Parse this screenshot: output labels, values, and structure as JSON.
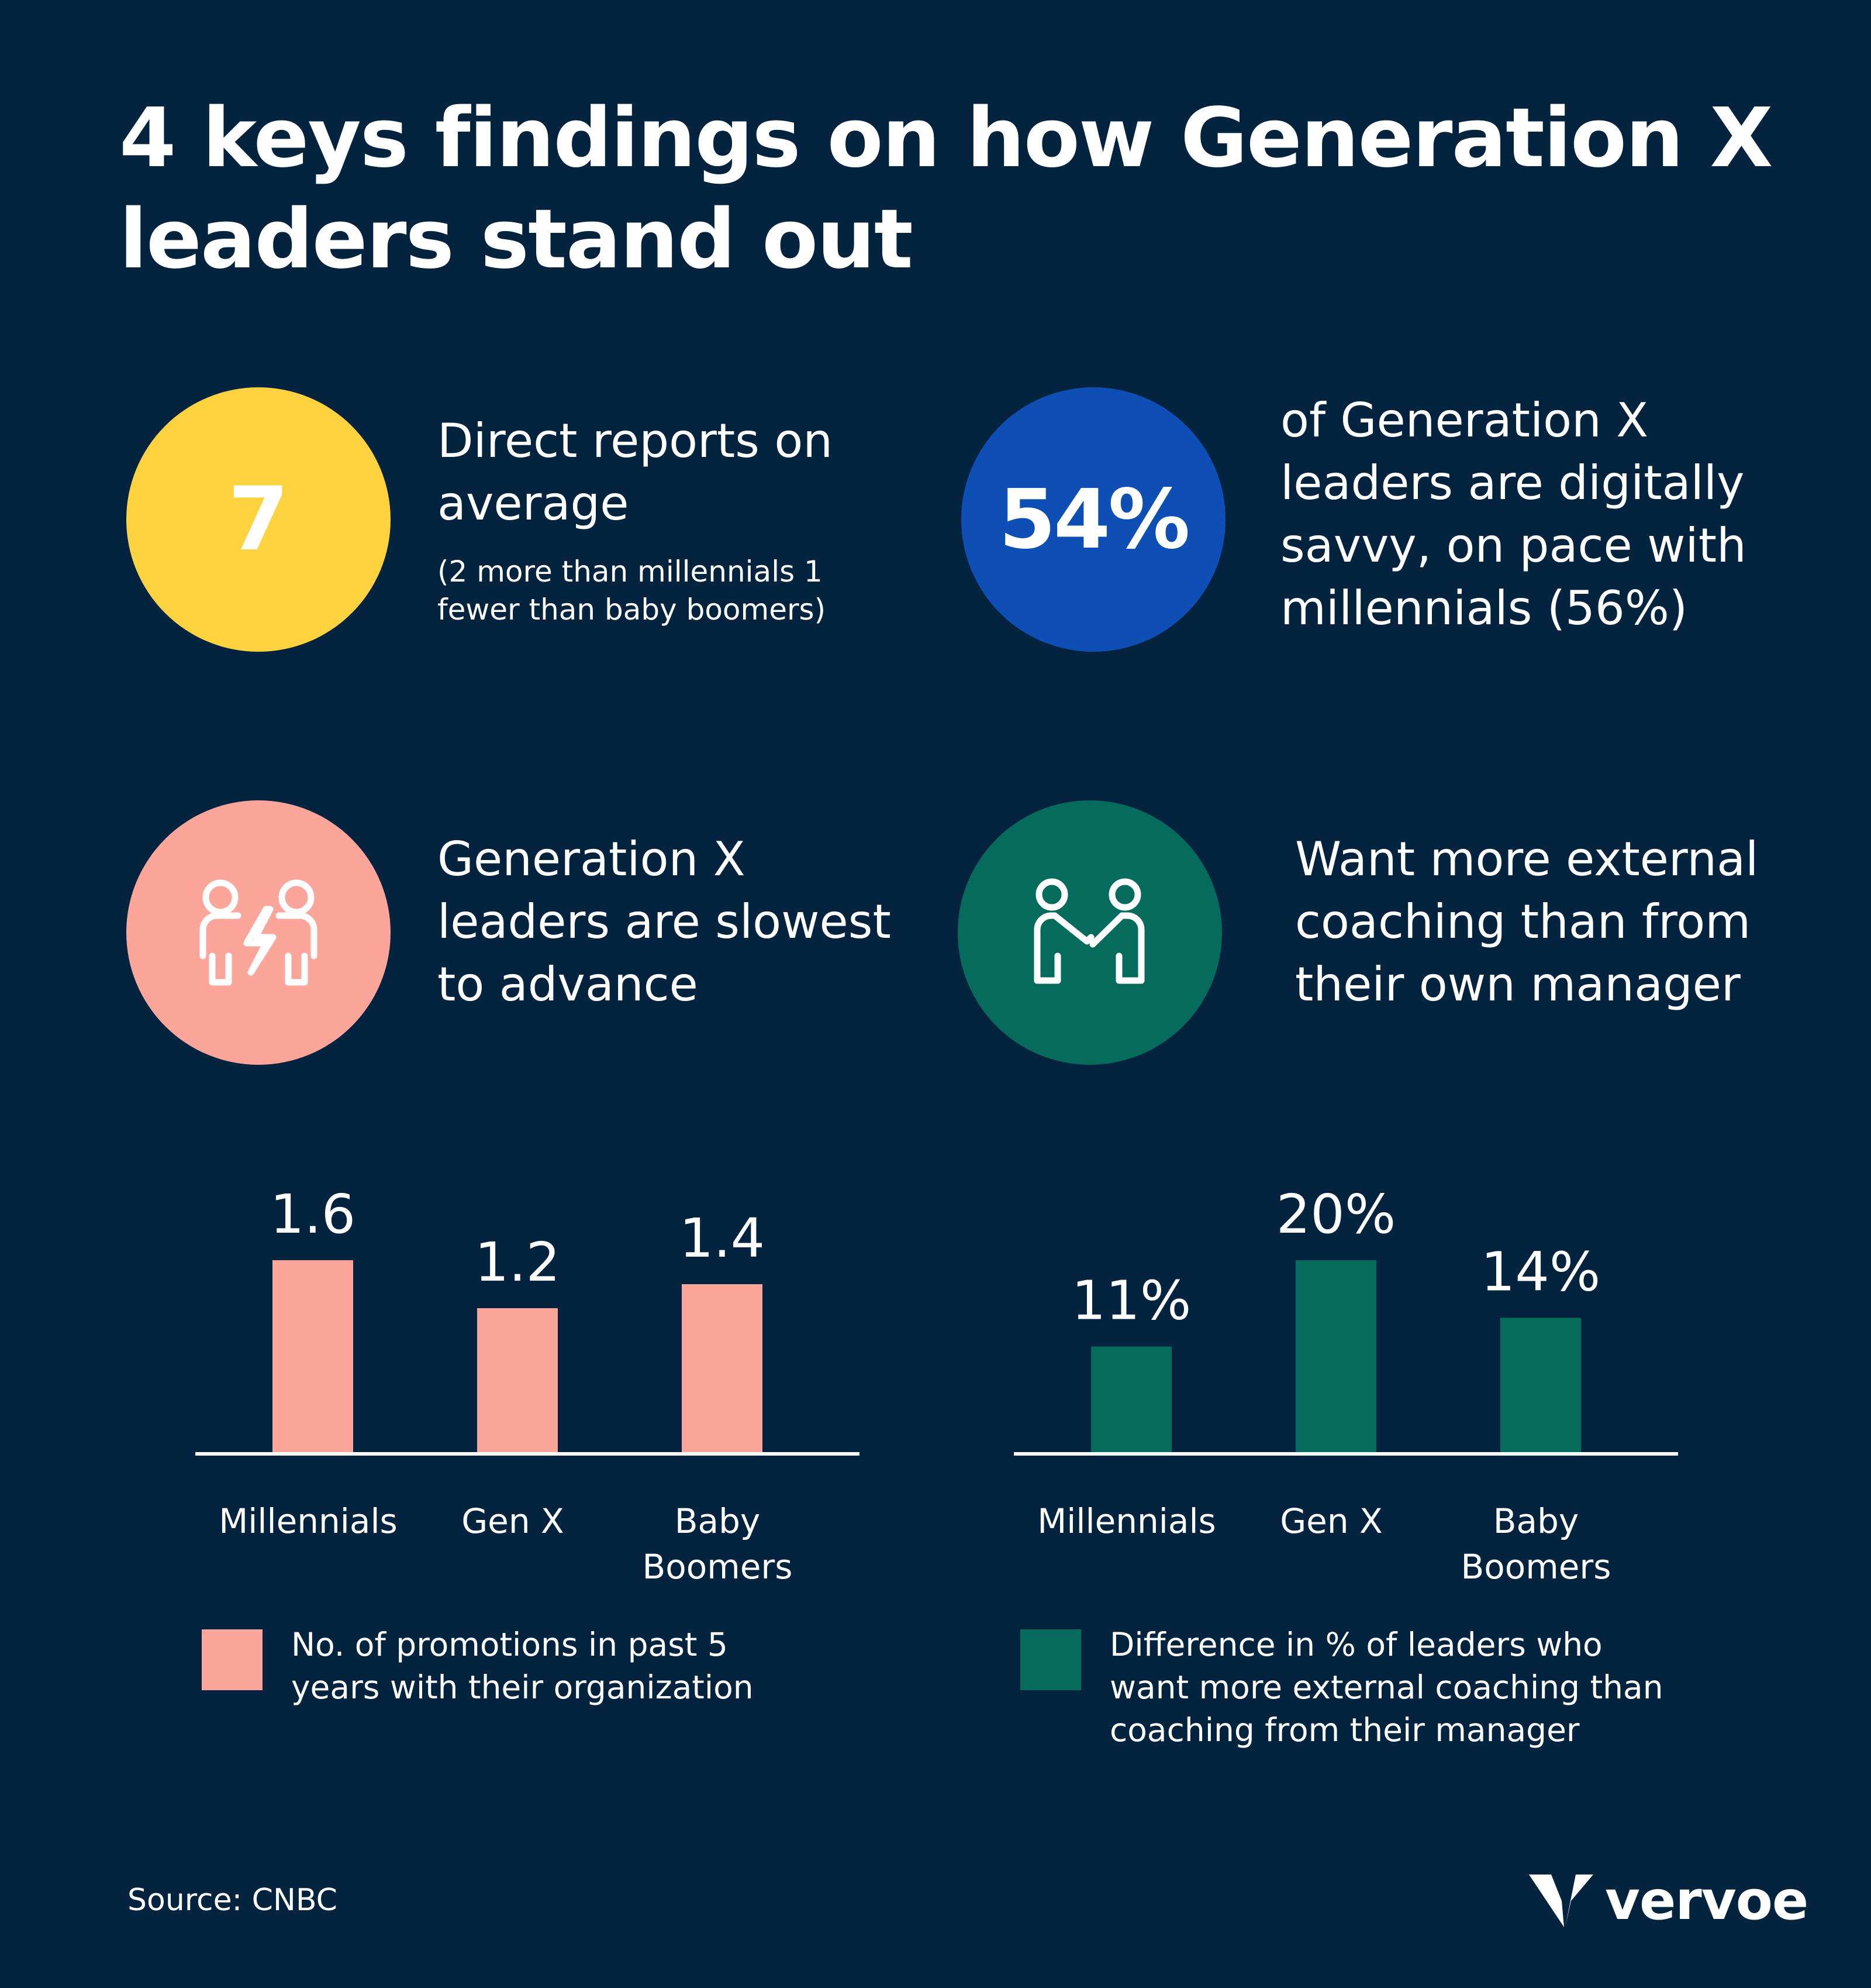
{
  "title": {
    "line1": "4 keys findings on how Generation X",
    "line2": "leaders stand out"
  },
  "facts": [
    {
      "value": "7",
      "main_lines": [
        "Direct reports on",
        "average"
      ],
      "sub_lines": [
        "(2 more than millennials 1",
        "fewer than baby boomers)"
      ],
      "color": "#ffd23f"
    },
    {
      "value": "54%",
      "main_lines": [
        "of Generation X",
        "leaders are digitally",
        "savvy, on pace with",
        "millennials (56%)"
      ],
      "color": "#0d4fb5"
    },
    {
      "icon": "people-conflict-icon",
      "main_lines": [
        "Generation X",
        "leaders are slowest",
        "to advance"
      ],
      "color": "#fba59b"
    },
    {
      "icon": "people-coaching-icon",
      "main_lines": [
        "Want more external",
        "coaching than from",
        "their own manager"
      ],
      "color": "#046b5d"
    }
  ],
  "chart_data": [
    {
      "type": "bar",
      "categories": [
        "Millennials",
        "Gen X",
        "Baby Boomers"
      ],
      "category_lines": [
        [
          "Millennials"
        ],
        [
          "Gen X"
        ],
        [
          "Baby",
          "Boomers"
        ]
      ],
      "values": [
        1.6,
        1.2,
        1.4
      ],
      "value_labels": [
        "1.6",
        "1.2",
        "1.4"
      ],
      "color": "#fba59b",
      "legend_lines": [
        "No. of promotions in past 5",
        "years with their organization"
      ]
    },
    {
      "type": "bar",
      "categories": [
        "Millennials",
        "Gen X",
        "Baby Boomers"
      ],
      "category_lines": [
        [
          "Millennials"
        ],
        [
          "Gen X"
        ],
        [
          "Baby",
          "Boomers"
        ]
      ],
      "values": [
        11,
        20,
        14
      ],
      "value_labels": [
        "11%",
        "20%",
        "14%"
      ],
      "color": "#046b5d",
      "legend_lines": [
        "Difference in % of leaders who",
        "want more external coaching than",
        "coaching from their manager"
      ]
    }
  ],
  "source": "Source: CNBC",
  "brand": "vervoe"
}
